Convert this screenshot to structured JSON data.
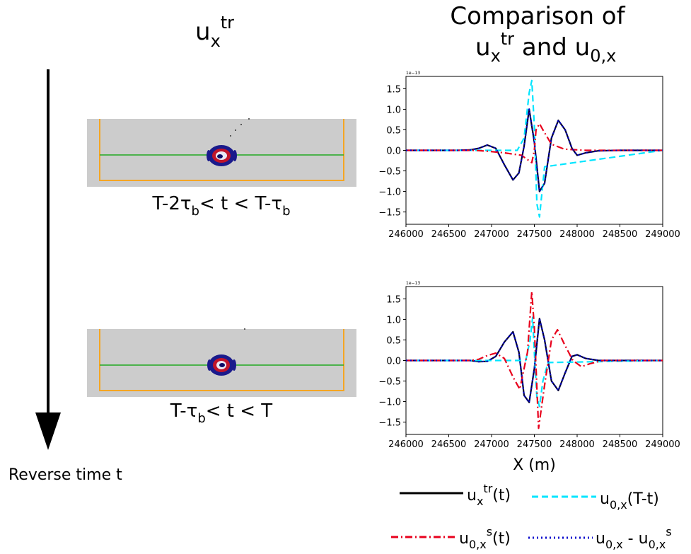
{
  "left_title": {
    "base": "u",
    "sub": "x",
    "sup": "tr"
  },
  "right_title": {
    "line1": "Comparison of",
    "l2_base1": "u",
    "l2_sub1": "x",
    "l2_sup1": "tr",
    "l2_mid": " and ",
    "l2_base2": "u",
    "l2_sub2": "0,x"
  },
  "panel_labels": [
    {
      "p1": "T-2τ",
      "sub1": "b",
      "p2": "< t < T-τ",
      "sub2": "b"
    },
    {
      "p1": "T-τ",
      "sub1": "b",
      "p2": "< t < T"
    }
  ],
  "arrow_label": "Reverse time t",
  "colors": {
    "ux_tr": "#000033",
    "u0x_Tt": "#00e5ff",
    "u0xs": "#e8001c",
    "u0x_minus_u0xs": "#0000cc",
    "snapshot_bg": "#cccccc",
    "snapshot_frame": "#f5a623",
    "snapshot_line": "#22aa22"
  },
  "legend": {
    "items": [
      {
        "line": "solid",
        "color": "#000000",
        "base": "u",
        "sub": "x",
        "sup": "tr",
        "rest": "(t)"
      },
      {
        "line": "dashed",
        "color": "#00e5ff",
        "base": "u",
        "sub": "0,x",
        "sup": "",
        "rest": "(T-t)"
      },
      {
        "line": "dashdot",
        "color": "#e8001c",
        "base": "u",
        "sub": "0,x",
        "sup": "s",
        "rest": "(t)"
      },
      {
        "line": "dotted",
        "color": "#0000cc",
        "base": "u",
        "sub": "0,x",
        "sup": "",
        "rest": " - ",
        "base2": "u",
        "sub2": "0,x",
        "sup2": "s"
      }
    ]
  },
  "chart_data": [
    {
      "type": "line",
      "exponent_label": "1e−13",
      "xlabel": "",
      "ylabel": "",
      "xlim": [
        246000,
        249000
      ],
      "ylim": [
        -1.8,
        1.8
      ],
      "xticks": [
        "246000",
        "246500",
        "247000",
        "247500",
        "248000",
        "248500",
        "249000"
      ],
      "yticks": [
        "1.5",
        "1.0",
        "0.5",
        "0.0",
        "−0.5",
        "−1.0",
        "−1.5"
      ],
      "series": [
        {
          "style": "solid",
          "color": "#000033",
          "x": [
            246000,
            246600,
            246750,
            246850,
            246950,
            247050,
            247150,
            247250,
            247320,
            247380,
            247440,
            247500,
            247560,
            247620,
            247700,
            247780,
            247860,
            247940,
            248000,
            248100,
            248250,
            248500,
            249000
          ],
          "y": [
            0,
            0,
            0.01,
            0.05,
            0.13,
            0.05,
            -0.35,
            -0.72,
            -0.55,
            0.1,
            1.0,
            0.2,
            -1.0,
            -0.8,
            0.3,
            0.73,
            0.5,
            0.05,
            -0.12,
            -0.06,
            -0.01,
            0,
            0
          ]
        },
        {
          "style": "dashed",
          "color": "#00e5ff",
          "x": [
            246000,
            247300,
            247380,
            247440,
            247470,
            247500,
            247530,
            247560,
            247620,
            249000
          ],
          "y": [
            0,
            0,
            0.3,
            1.4,
            1.7,
            0.6,
            -1.3,
            -1.62,
            -0.4,
            0
          ]
        },
        {
          "style": "dashdot",
          "color": "#e8001c",
          "x": [
            246000,
            246800,
            246950,
            247150,
            247350,
            247470,
            247500,
            247520,
            247560,
            247600,
            247700,
            247850,
            248100,
            249000
          ],
          "y": [
            0,
            0,
            -0.02,
            -0.06,
            -0.12,
            -0.3,
            0,
            0.5,
            0.65,
            0.5,
            0.15,
            0.03,
            0,
            0
          ]
        },
        {
          "style": "dotted",
          "color": "#0000cc",
          "x": [
            246000,
            246600,
            246750,
            246850,
            246950,
            247050,
            247150,
            247250,
            247320,
            247380,
            247440,
            247500,
            247560,
            247620,
            247700,
            247780,
            247860,
            247940,
            248000,
            248100,
            248250,
            248500,
            249000
          ],
          "y": [
            0,
            0,
            0.01,
            0.05,
            0.13,
            0.05,
            -0.35,
            -0.72,
            -0.55,
            0.1,
            1.0,
            0.2,
            -1.0,
            -0.8,
            0.3,
            0.73,
            0.5,
            0.05,
            -0.12,
            -0.06,
            -0.01,
            0,
            0
          ]
        }
      ]
    },
    {
      "type": "line",
      "exponent_label": "1e−13",
      "xlabel": "X (m)",
      "ylabel": "",
      "xlim": [
        246000,
        249000
      ],
      "ylim": [
        -1.8,
        1.8
      ],
      "xticks": [
        "246000",
        "246500",
        "247000",
        "247500",
        "248000",
        "248500",
        "249000"
      ],
      "yticks": [
        "1.5",
        "1.0",
        "0.5",
        "0.0",
        "−0.5",
        "−1.0",
        "−1.5"
      ],
      "series": [
        {
          "style": "solid",
          "color": "#000033",
          "x": [
            246000,
            246600,
            246750,
            246850,
            246950,
            247050,
            247150,
            247250,
            247320,
            247380,
            247440,
            247500,
            247560,
            247620,
            247700,
            247780,
            247860,
            247940,
            248000,
            248100,
            248250,
            248500,
            249000
          ],
          "y": [
            0,
            0,
            0,
            -0.03,
            -0.02,
            0.1,
            0.45,
            0.7,
            0.2,
            -0.85,
            -1.02,
            -0.2,
            1.02,
            0.5,
            -0.5,
            -0.73,
            -0.3,
            0.1,
            0.14,
            0.05,
            0,
            0,
            0
          ]
        },
        {
          "style": "dashed",
          "color": "#00e5ff",
          "x": [
            246000,
            247400,
            247450,
            247480,
            247500,
            247530,
            247560,
            247600,
            247660,
            249000
          ],
          "y": [
            0,
            0,
            0.5,
            1.05,
            0.2,
            -0.9,
            -1.12,
            -0.5,
            -0.05,
            0
          ]
        },
        {
          "style": "dashdot",
          "color": "#e8001c",
          "x": [
            246000,
            246750,
            246850,
            246950,
            247050,
            247150,
            247250,
            247330,
            247420,
            247470,
            247500,
            247550,
            247620,
            247700,
            247770,
            247850,
            247950,
            248050,
            248150,
            248300,
            249000
          ],
          "y": [
            0,
            0,
            0.03,
            0.12,
            0.18,
            0.05,
            -0.4,
            -0.7,
            0.2,
            1.68,
            0.8,
            -1.65,
            -0.6,
            0.5,
            0.75,
            0.4,
            0.0,
            -0.15,
            -0.08,
            0,
            0
          ]
        },
        {
          "style": "dotted",
          "color": "#0000cc",
          "x": [
            246000,
            246600,
            246750,
            246850,
            246950,
            247050,
            247150,
            247250,
            247320,
            247380,
            247440,
            247500,
            247560,
            247620,
            247700,
            247780,
            247860,
            247940,
            248000,
            248100,
            248250,
            248500,
            249000
          ],
          "y": [
            0,
            0,
            0,
            -0.03,
            -0.02,
            0.1,
            0.45,
            0.7,
            0.2,
            -0.85,
            -1.02,
            -0.2,
            1.02,
            0.5,
            -0.5,
            -0.73,
            -0.3,
            0.1,
            0.14,
            0.05,
            0,
            0,
            0
          ]
        }
      ]
    }
  ]
}
